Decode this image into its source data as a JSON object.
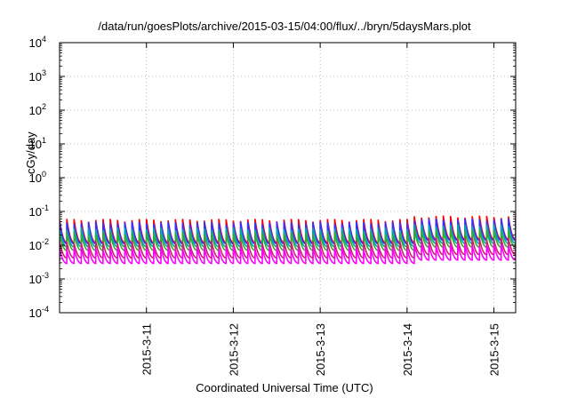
{
  "chart_data": {
    "type": "line",
    "title": "/data/run/goesPlots/archive/2015-03-15/04:00/flux/../bryn/5daysMars.plot",
    "xlabel": "Coordinated Universal Time (UTC)",
    "ylabel": "cGy/day",
    "yscale": "log",
    "ylim": [
      0.0001,
      10000
    ],
    "yticks": [
      {
        "exp": "-4",
        "value": 0.0001
      },
      {
        "exp": "-3",
        "value": 0.001
      },
      {
        "exp": "-2",
        "value": 0.01
      },
      {
        "exp": "-1",
        "value": 0.1
      },
      {
        "exp": "0",
        "value": 1
      },
      {
        "exp": "1",
        "value": 10
      },
      {
        "exp": "2",
        "value": 100
      },
      {
        "exp": "3",
        "value": 1000
      },
      {
        "exp": "4",
        "value": 10000
      }
    ],
    "xlim_days": [
      10.0,
      15.25
    ],
    "xticks": [
      {
        "label": "2015-3-11",
        "day": 11
      },
      {
        "label": "2015-3-12",
        "day": 12
      },
      {
        "label": "2015-3-13",
        "day": 13
      },
      {
        "label": "2015-3-14",
        "day": 14
      },
      {
        "label": "2015-3-15",
        "day": 15
      }
    ],
    "grid": true,
    "series": [
      {
        "color": "#ff0000",
        "peak": 0.055,
        "trough": 0.012
      },
      {
        "color": "#3333ff",
        "peak": 0.045,
        "trough": 0.011
      },
      {
        "color": "#00aaaa",
        "peak": 0.03,
        "trough": 0.009
      },
      {
        "color": "#33aa33",
        "peak": 0.022,
        "trough": 0.007
      },
      {
        "color": "#cc2266",
        "peak": 0.012,
        "trough": 0.0042
      },
      {
        "color": "#ff00ff",
        "peak": 0.008,
        "trough": 0.0029
      }
    ]
  }
}
